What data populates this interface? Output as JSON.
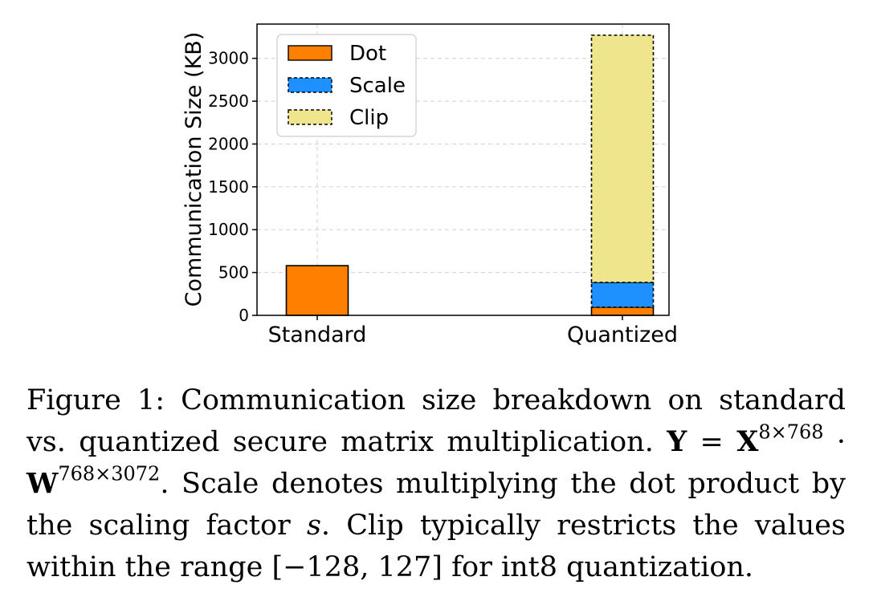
{
  "chart_data": {
    "type": "bar",
    "stacked": true,
    "categories": [
      "Standard",
      "Quantized"
    ],
    "series": [
      {
        "name": "Dot",
        "values": [
          580,
          95
        ],
        "color": "#ff8000",
        "dashed": false
      },
      {
        "name": "Scale",
        "values": [
          0,
          290
        ],
        "color": "#1e90ff",
        "dashed": true
      },
      {
        "name": "Clip",
        "values": [
          0,
          2885
        ],
        "color": "#eee58c",
        "dashed": true
      }
    ],
    "title": "",
    "xlabel": "",
    "ylabel": "Communication Size (KB)",
    "yticks": [
      "0",
      "500",
      "1000",
      "1500",
      "2000",
      "2500",
      "3000"
    ],
    "ylim": [
      0,
      3400
    ],
    "grid": true,
    "legend_position": "top-left"
  },
  "caption": {
    "lead": "Figure 1: Communication size breakdown on standard vs. quantized secure matrix multiplication. ",
    "eq_Y": "Y",
    "eq_eq": " = ",
    "eq_X": "X",
    "eq_X_sup": "8×768",
    "eq_dot": " · ",
    "eq_W": "W",
    "eq_W_sup": "768×3072",
    "rest1": ". Scale denotes multiplying the dot product by the scaling factor ",
    "sym_s": "s",
    "rest2": ". Clip typically restricts the values within the range [−128, 127] for int8 quantization."
  }
}
